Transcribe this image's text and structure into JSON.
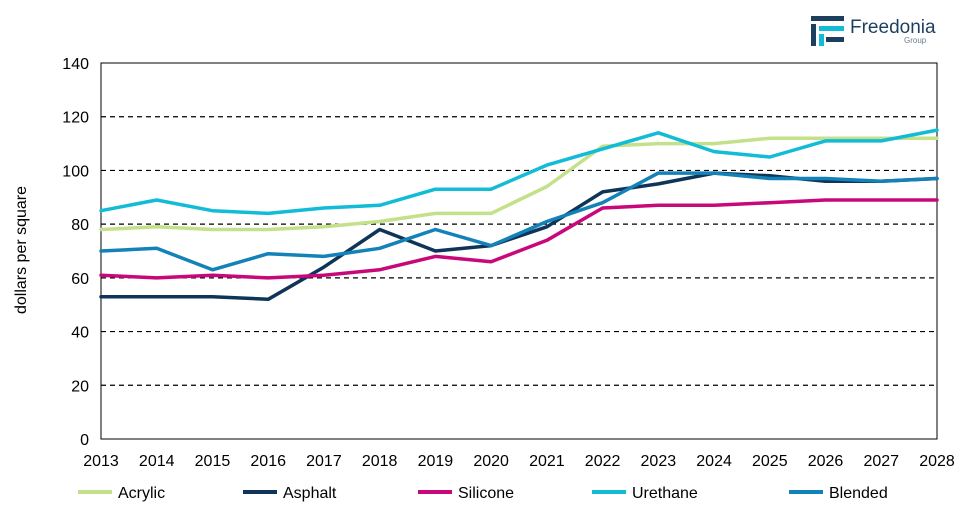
{
  "logo": {
    "name": "Freedonia",
    "sub": "Group"
  },
  "chart_data": {
    "type": "line",
    "title": "",
    "xlabel": "",
    "ylabel": "dollars per square",
    "x": [
      "2013",
      "2014",
      "2015",
      "2016",
      "2017",
      "2018",
      "2019",
      "2020",
      "2021",
      "2022",
      "2023",
      "2024",
      "2025",
      "2026",
      "2027",
      "2028"
    ],
    "ylim": [
      0,
      140
    ],
    "yticks": [
      0,
      20,
      40,
      60,
      80,
      100,
      120,
      140
    ],
    "grid": "horizontal dashed",
    "legend_position": "bottom",
    "series": [
      {
        "name": "Acrylic",
        "color": "#c4e08a",
        "values": [
          78,
          79,
          78,
          78,
          79,
          81,
          84,
          84,
          94,
          109,
          110,
          110,
          112,
          112,
          112,
          112
        ]
      },
      {
        "name": "Asphalt",
        "color": "#0e3558",
        "values": [
          53,
          53,
          53,
          52,
          64,
          78,
          70,
          72,
          79,
          92,
          95,
          99,
          98,
          96,
          96,
          97
        ]
      },
      {
        "name": "Silicone",
        "color": "#c8087a",
        "values": [
          61,
          60,
          61,
          60,
          61,
          63,
          68,
          66,
          74,
          86,
          87,
          87,
          88,
          89,
          89,
          89
        ]
      },
      {
        "name": "Urethane",
        "color": "#12bcd6",
        "values": [
          85,
          89,
          85,
          84,
          86,
          87,
          93,
          93,
          102,
          108,
          114,
          107,
          105,
          111,
          111,
          115
        ]
      },
      {
        "name": "Blended",
        "color": "#1382b8",
        "values": [
          70,
          71,
          63,
          69,
          68,
          71,
          78,
          72,
          81,
          88,
          99,
          99,
          97,
          97,
          96,
          97
        ]
      }
    ]
  }
}
